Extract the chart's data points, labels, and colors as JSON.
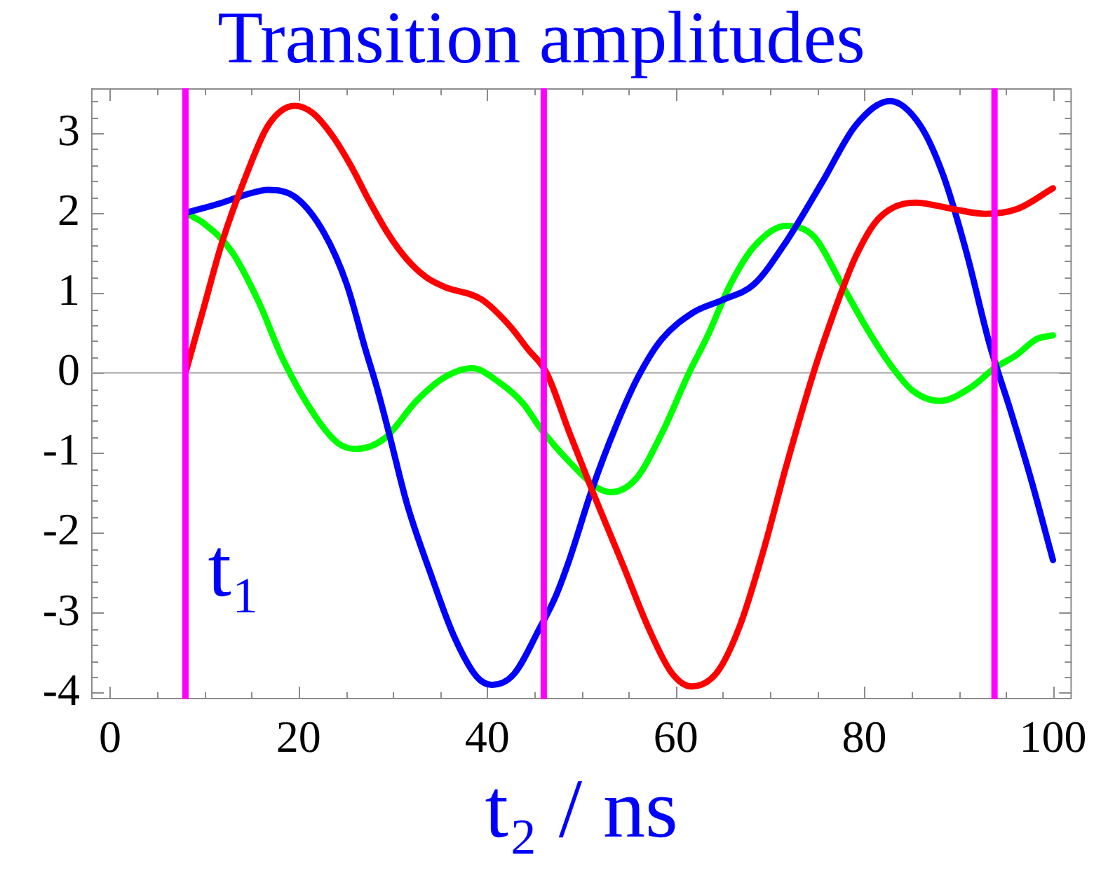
{
  "chart_data": {
    "type": "line",
    "title": "Transition amplitudes",
    "xlabel": "t₂ / ns",
    "xlim": [
      -2,
      102
    ],
    "ylim": [
      -4.08,
      3.56
    ],
    "xticks": [
      0,
      {
        "value": 5,
        "label": null
      },
      {
        "value": 10,
        "label": null
      },
      {
        "value": 15,
        "label": null
      },
      20,
      {
        "value": 25,
        "label": null
      },
      {
        "value": 30,
        "label": null
      },
      {
        "value": 35,
        "label": null
      },
      40,
      {
        "value": 45,
        "label": null
      },
      {
        "value": 50,
        "label": null
      },
      {
        "value": 55,
        "label": null
      },
      60,
      {
        "value": 65,
        "label": null
      },
      {
        "value": 70,
        "label": null
      },
      {
        "value": 75,
        "label": null
      },
      80,
      {
        "value": 85,
        "label": null
      },
      {
        "value": 90,
        "label": null
      },
      {
        "value": 95,
        "label": null
      },
      100
    ],
    "yticks": [
      -4,
      {
        "value": -3.8,
        "label": null
      },
      {
        "value": -3.6,
        "label": null
      },
      {
        "value": -3.4,
        "label": null
      },
      {
        "value": -3.2,
        "label": null
      },
      -3,
      {
        "value": -2.8,
        "label": null
      },
      {
        "value": -2.6,
        "label": null
      },
      {
        "value": -2.4,
        "label": null
      },
      {
        "value": -2.2,
        "label": null
      },
      -2,
      {
        "value": -1.8,
        "label": null
      },
      {
        "value": -1.6,
        "label": null
      },
      {
        "value": -1.4,
        "label": null
      },
      {
        "value": -1.2,
        "label": null
      },
      -1,
      {
        "value": -0.8,
        "label": null
      },
      {
        "value": -0.6,
        "label": null
      },
      {
        "value": -0.4,
        "label": null
      },
      {
        "value": -0.2,
        "label": null
      },
      0,
      {
        "value": 0.2,
        "label": null
      },
      {
        "value": 0.4,
        "label": null
      },
      {
        "value": 0.6,
        "label": null
      },
      {
        "value": 0.8,
        "label": null
      },
      1,
      {
        "value": 1.2,
        "label": null
      },
      {
        "value": 1.4,
        "label": null
      },
      {
        "value": 1.6,
        "label": null
      },
      {
        "value": 1.8,
        "label": null
      },
      2,
      {
        "value": 2.2,
        "label": null
      },
      {
        "value": 2.4,
        "label": null
      },
      {
        "value": 2.6,
        "label": null
      },
      {
        "value": 2.8,
        "label": null
      },
      3,
      {
        "value": 3.2,
        "label": null
      },
      {
        "value": 3.4,
        "label": null
      }
    ],
    "series": [
      {
        "color": "#ff0000",
        "x": [
          8,
          9.95,
          11.9,
          14.4,
          16.8,
          19.6,
          21.5,
          23.5,
          25.5,
          27.5,
          29.5,
          31.5,
          33.5,
          35.4,
          39.4,
          42.3,
          44.3,
          46.3,
          48.7,
          51.1,
          54.6,
          57,
          59.5,
          61.7,
          64.4,
          66.8,
          69.3,
          71.7,
          74.6,
          76.6,
          79.1,
          81.5,
          85.4,
          89.4,
          92.8,
          96.2,
          100
        ],
        "values": [
          0,
          0.82,
          1.64,
          2.46,
          3.1,
          3.34,
          3.25,
          2.98,
          2.6,
          2.15,
          1.74,
          1.42,
          1.2,
          1.08,
          0.92,
          0.6,
          0.3,
          0,
          -0.74,
          -1.46,
          -2.46,
          -3.16,
          -3.74,
          -3.92,
          -3.74,
          -3.16,
          -2.22,
          -1.17,
          0,
          0.7,
          1.46,
          1.93,
          2.13,
          2.05,
          1.99,
          2.05,
          2.31
        ]
      },
      {
        "color": "#0000ff",
        "x": [
          8,
          11.9,
          14.4,
          16.8,
          19.75,
          22.7,
          25.1,
          27.1,
          28.3,
          29.6,
          31.5,
          34,
          36.4,
          38.9,
          40.5,
          42.8,
          45.7,
          47.2,
          48.7,
          51.1,
          53.6,
          56,
          58.5,
          61.9,
          64.9,
          68.3,
          71.7,
          75.6,
          79.1,
          82.7,
          85.9,
          88.4,
          90.8,
          93.3,
          95.5,
          97.7,
          100
        ],
        "values": [
          2,
          2.13,
          2.23,
          2.29,
          2.19,
          1.75,
          1.11,
          0.29,
          -0.18,
          -0.76,
          -1.64,
          -2.51,
          -3.27,
          -3.8,
          -3.9,
          -3.77,
          -3.16,
          -2.81,
          -2.34,
          -1.46,
          -0.68,
          -0.05,
          0.42,
          0.76,
          0.91,
          1.11,
          1.64,
          2.4,
          3.1,
          3.4,
          3.1,
          2.46,
          1.52,
          0.35,
          -0.47,
          -1.34,
          -2.34
        ]
      },
      {
        "color": "#00ff00",
        "x": [
          8,
          9.95,
          12.9,
          15.8,
          18.3,
          21.7,
          24.2,
          26.1,
          29.1,
          32.5,
          35.4,
          38.4,
          41.3,
          43.8,
          45.7,
          48.7,
          51.6,
          53.1,
          55.8,
          58.5,
          61.4,
          63.4,
          65.8,
          68.3,
          71.7,
          74.7,
          77.6,
          80.3,
          82.9,
          85.1,
          88,
          91.3,
          93.8,
          96.2,
          98.2,
          100
        ],
        "values": [
          2,
          1.87,
          1.52,
          0.88,
          0.18,
          -0.53,
          -0.88,
          -0.95,
          -0.82,
          -0.35,
          -0.06,
          0.06,
          -0.12,
          -0.38,
          -0.7,
          -1.11,
          -1.43,
          -1.49,
          -1.32,
          -0.76,
          0,
          0.47,
          1.11,
          1.58,
          1.84,
          1.7,
          1.11,
          0.55,
          0.08,
          -0.22,
          -0.35,
          -0.18,
          0.06,
          0.23,
          0.42,
          0.47
        ]
      }
    ],
    "ref_lines": [
      {
        "axis": "y",
        "value": 0,
        "color": "#a6a6a6"
      },
      {
        "axis": "x",
        "value": 8,
        "label": "t₁",
        "color": "#ff00ff"
      },
      {
        "axis": "x",
        "value": 46,
        "color": "#ff00ff"
      },
      {
        "axis": "x",
        "value": 93.8,
        "color": "#ff00ff"
      }
    ]
  }
}
